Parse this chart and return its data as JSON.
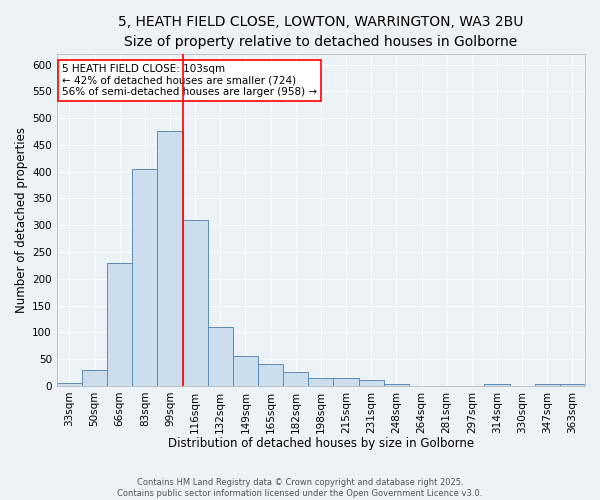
{
  "title_line1": "5, HEATH FIELD CLOSE, LOWTON, WARRINGTON, WA3 2BU",
  "title_line2": "Size of property relative to detached houses in Golborne",
  "xlabel": "Distribution of detached houses by size in Golborne",
  "ylabel": "Number of detached properties",
  "categories": [
    "33sqm",
    "50sqm",
    "66sqm",
    "83sqm",
    "99sqm",
    "116sqm",
    "132sqm",
    "149sqm",
    "165sqm",
    "182sqm",
    "198sqm",
    "215sqm",
    "231sqm",
    "248sqm",
    "264sqm",
    "281sqm",
    "297sqm",
    "314sqm",
    "330sqm",
    "347sqm",
    "363sqm"
  ],
  "values": [
    5,
    30,
    230,
    405,
    475,
    310,
    110,
    55,
    40,
    25,
    15,
    15,
    10,
    3,
    0,
    0,
    0,
    4,
    0,
    4,
    4
  ],
  "bar_color": "#ccdded",
  "bar_edge_color": "#5b8db8",
  "red_line_x": 4.5,
  "annotation_label": "5 HEATH FIELD CLOSE: 103sqm",
  "annotation_line2": "← 42% of detached houses are smaller (724)",
  "annotation_line3": "56% of semi-detached houses are larger (958) →",
  "ylim": [
    0,
    620
  ],
  "yticks": [
    0,
    50,
    100,
    150,
    200,
    250,
    300,
    350,
    400,
    450,
    500,
    550,
    600
  ],
  "bg_color": "#edf2f7",
  "grid_color": "#ffffff",
  "footer_line1": "Contains HM Land Registry data © Crown copyright and database right 2025.",
  "footer_line2": "Contains public sector information licensed under the Open Government Licence v3.0.",
  "title_fontsize": 10,
  "subtitle_fontsize": 9,
  "axis_label_fontsize": 8.5,
  "tick_fontsize": 7.5,
  "footer_fontsize": 6,
  "annotation_fontsize": 7.5
}
